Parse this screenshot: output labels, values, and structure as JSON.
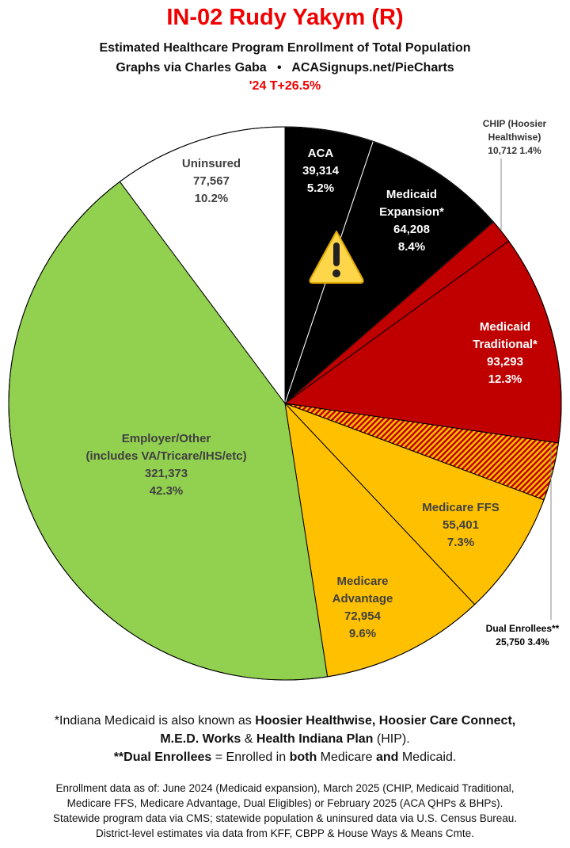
{
  "header": {
    "title": "IN-02 Rudy Yakym (R)",
    "subtitle": "Estimated Healthcare Program Enrollment of Total Population",
    "credit": "Graphs via Charles Gaba   •   ACASignups.net/PieCharts",
    "pvi": "'24 T+26.5%"
  },
  "chart_data": {
    "type": "pie",
    "start": "12 o'clock, clockwise",
    "slices": [
      {
        "name": "ACA",
        "value": 39314,
        "pct": "5.2%",
        "label_lines": [
          "ACA",
          "39,314",
          "5.2%"
        ],
        "color": "#000000",
        "text_color": "#ffffff"
      },
      {
        "name": "Medicaid Expansion*",
        "value": 64208,
        "pct": "8.4%",
        "label_lines": [
          "Medicaid",
          "Expansion*",
          "64,208",
          "8.4%"
        ],
        "color": "#000000",
        "text_color": "#ffffff"
      },
      {
        "name": "CHIP (Hoosier Healthwise)",
        "value": 10712,
        "pct": "1.4%",
        "label_lines": [
          "CHIP (Hoosier",
          "Healthwise)",
          "10,712 1.4%"
        ],
        "color": "#c00000",
        "text_color": "#333333",
        "external": true
      },
      {
        "name": "Medicaid Traditional*",
        "value": 93293,
        "pct": "12.3%",
        "label_lines": [
          "Medicaid",
          "Traditional*",
          "93,293",
          "12.3%"
        ],
        "color": "#c00000",
        "text_color": "#ffffff"
      },
      {
        "name": "Dual Enrollees**",
        "value": 25750,
        "pct": "3.4%",
        "label_lines": [
          "Dual Enrollees**",
          "25,750 3.4%"
        ],
        "color": "hatch:#c00000/#ffc000",
        "text_color": "#000000",
        "external": true
      },
      {
        "name": "Medicare FFS",
        "value": 55401,
        "pct": "7.3%",
        "label_lines": [
          "Medicare FFS",
          "55,401",
          "7.3%"
        ],
        "color": "#ffc000",
        "text_color": "#404040"
      },
      {
        "name": "Medicare Advantage",
        "value": 72954,
        "pct": "9.6%",
        "label_lines": [
          "Medicare",
          "Advantage",
          "72,954",
          "9.6%"
        ],
        "color": "#ffc000",
        "text_color": "#404040"
      },
      {
        "name": "Employer/Other (includes VA/Tricare/IHS/etc)",
        "value": 321373,
        "pct": "42.3%",
        "label_lines": [
          "Employer/Other",
          "(includes VA/Tricare/IHS/etc)",
          "321,373",
          "42.3%"
        ],
        "color": "#92d050",
        "text_color": "#404040"
      },
      {
        "name": "Uninsured",
        "value": 77567,
        "pct": "10.2%",
        "label_lines": [
          "Uninsured",
          "77,567",
          "10.2%"
        ],
        "color": "#ffffff",
        "text_color": "#404040"
      }
    ],
    "annotation_icon": "warning-icon"
  },
  "notes": {
    "line1_a": "*Indiana Medicaid is also known as ",
    "line1_b": "Hoosier Healthwise, Hoosier Care Connect,",
    "line2_a": "M.E.D. Works",
    "line2_b": " & ",
    "line2_c": "Health Indiana Plan",
    "line2_d": " (HIP).",
    "line3_a": "**Dual Enrollees",
    "line3_b": " = Enrolled in ",
    "line3_c": "both",
    "line3_d": " Medicare ",
    "line3_e": "and",
    "line3_f": " Medicaid."
  },
  "sources": [
    "Enrollment data as of: June 2024 (Medicaid expansion), March 2025 (CHIP, Medicaid Traditional,",
    "Medicare FFS, Medicare Advantage, Dual Eligibles) or February 2025 (ACA QHPs & BHPs).",
    "Statewide program data via CMS; statewide population & uninsured data via U.S. Census Bureau.",
    "District-level estimates via data from KFF, CBPP & House Ways & Means Cmte."
  ]
}
